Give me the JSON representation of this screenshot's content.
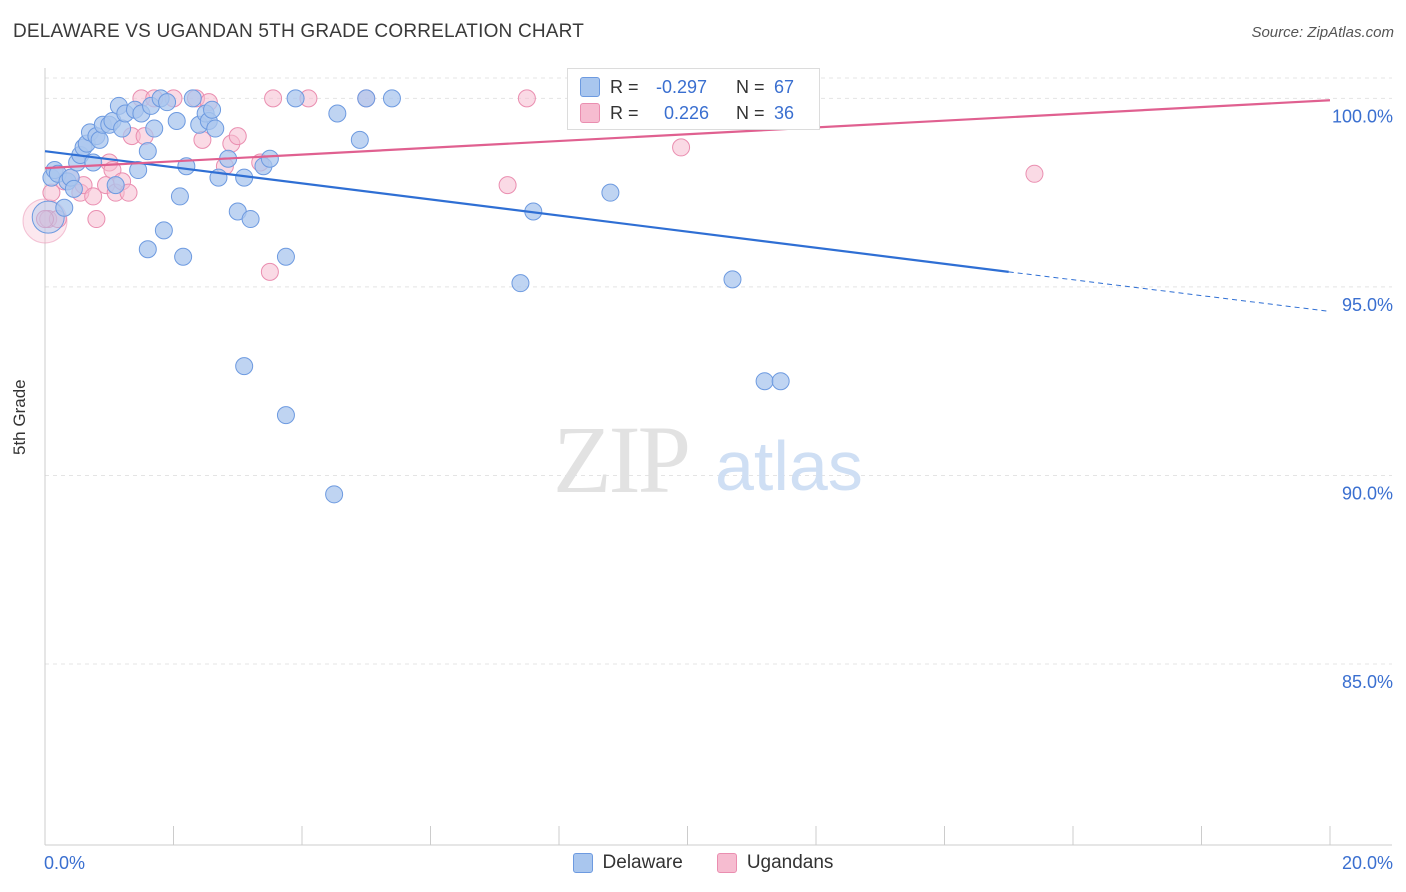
{
  "title": "DELAWARE VS UGANDAN 5TH GRADE CORRELATION CHART",
  "source": "Source: ZipAtlas.com",
  "watermark": {
    "zip": "ZIP",
    "atlas": "atlas"
  },
  "colors": {
    "delaware_fill": "#a9c6ee",
    "delaware_stroke": "#6d9ae0",
    "delaware_line": "#2f6fd4",
    "ugandans_fill": "#f6bcd0",
    "ugandans_stroke": "#ea8eb0",
    "ugandans_line": "#e06090",
    "axis_text": "#3a6fd0",
    "grid": "#e4e4e4"
  },
  "stats": {
    "delaware": {
      "r_label": "R =",
      "r": "-0.297",
      "n_label": "N =",
      "n": "67"
    },
    "ugandans": {
      "r_label": "R =",
      "r": "0.226",
      "n_label": "N =",
      "n": "36"
    }
  },
  "legend": [
    "Delaware",
    "Ugandans"
  ],
  "chart_data": {
    "type": "scatter",
    "title": "DELAWARE VS UGANDAN 5TH GRADE CORRELATION CHART",
    "xlabel": "",
    "ylabel": "5th Grade",
    "xlim": [
      0,
      20
    ],
    "ylim": [
      80.2,
      100.7
    ],
    "x_tick_labels": [
      "0.0%",
      "20.0%"
    ],
    "y_ticks": [
      100,
      95,
      90,
      85
    ],
    "y_tick_labels": [
      "100.0%",
      "95.0%",
      "90.0%",
      "85.0%"
    ],
    "grid": "horizontal dashed",
    "legend_position": "bottom-center",
    "series": [
      {
        "name": "Delaware",
        "trend": {
          "x0": 0,
          "y0": 98.6,
          "x1": 15.0,
          "y1": 95.4,
          "dashed_to_x": 20,
          "dashed_to_y": 94.35
        },
        "points": [
          [
            0.1,
            97.9
          ],
          [
            0.15,
            98.1
          ],
          [
            0.2,
            98.0
          ],
          [
            0.3,
            97.1
          ],
          [
            0.35,
            97.8
          ],
          [
            0.4,
            97.9
          ],
          [
            0.45,
            97.6
          ],
          [
            0.5,
            98.3
          ],
          [
            0.55,
            98.5
          ],
          [
            0.6,
            98.7
          ],
          [
            0.65,
            98.8
          ],
          [
            0.7,
            99.1
          ],
          [
            0.75,
            98.3
          ],
          [
            0.8,
            99.0
          ],
          [
            0.85,
            98.9
          ],
          [
            0.9,
            99.3
          ],
          [
            1.0,
            99.3
          ],
          [
            1.05,
            99.4
          ],
          [
            1.1,
            97.7
          ],
          [
            1.15,
            99.8
          ],
          [
            1.2,
            99.2
          ],
          [
            1.25,
            99.6
          ],
          [
            1.4,
            99.7
          ],
          [
            1.45,
            98.1
          ],
          [
            1.5,
            99.6
          ],
          [
            1.6,
            98.6
          ],
          [
            1.65,
            99.8
          ],
          [
            1.7,
            99.2
          ],
          [
            1.8,
            100.0
          ],
          [
            1.85,
            96.5
          ],
          [
            1.6,
            96.0
          ],
          [
            1.9,
            99.9
          ],
          [
            2.05,
            99.4
          ],
          [
            2.1,
            97.4
          ],
          [
            2.2,
            98.2
          ],
          [
            2.15,
            95.8
          ],
          [
            2.3,
            100.0
          ],
          [
            2.4,
            99.3
          ],
          [
            2.5,
            99.6
          ],
          [
            2.55,
            99.4
          ],
          [
            2.6,
            99.7
          ],
          [
            2.65,
            99.2
          ],
          [
            2.7,
            97.9
          ],
          [
            2.85,
            98.4
          ],
          [
            3.0,
            97.0
          ],
          [
            3.1,
            97.9
          ],
          [
            3.2,
            96.8
          ],
          [
            3.4,
            98.2
          ],
          [
            3.5,
            98.4
          ],
          [
            3.75,
            95.8
          ],
          [
            3.1,
            92.9
          ],
          [
            3.75,
            91.6
          ],
          [
            3.9,
            100.0
          ],
          [
            4.55,
            99.6
          ],
          [
            4.5,
            89.5
          ],
          [
            4.9,
            98.9
          ],
          [
            5.0,
            100.0
          ],
          [
            5.4,
            100.0
          ],
          [
            7.4,
            95.1
          ],
          [
            7.6,
            97.0
          ],
          [
            9.0,
            100.0
          ],
          [
            9.8,
            100.0
          ],
          [
            8.8,
            97.5
          ],
          [
            11.4,
            100.0
          ],
          [
            10.7,
            95.2
          ],
          [
            11.2,
            92.5
          ],
          [
            11.45,
            92.5
          ]
        ]
      },
      {
        "name": "Ugandans",
        "trend": {
          "x0": 0,
          "y0": 98.15,
          "x1": 20,
          "y1": 99.95
        },
        "points": [
          [
            0.05,
            96.8
          ],
          [
            0.1,
            97.5
          ],
          [
            0.2,
            96.8
          ],
          [
            0.3,
            97.8
          ],
          [
            0.4,
            97.9
          ],
          [
            0.55,
            97.5
          ],
          [
            0.6,
            97.7
          ],
          [
            0.75,
            97.4
          ],
          [
            0.8,
            96.8
          ],
          [
            0.95,
            97.7
          ],
          [
            1.0,
            98.3
          ],
          [
            1.05,
            98.1
          ],
          [
            1.1,
            97.5
          ],
          [
            1.2,
            97.8
          ],
          [
            1.3,
            97.5
          ],
          [
            1.35,
            99.0
          ],
          [
            1.5,
            100.0
          ],
          [
            1.7,
            100.0
          ],
          [
            1.55,
            99.0
          ],
          [
            2.0,
            100.0
          ],
          [
            2.35,
            100.0
          ],
          [
            2.45,
            98.9
          ],
          [
            2.55,
            99.9
          ],
          [
            2.8,
            98.2
          ],
          [
            2.9,
            98.8
          ],
          [
            3.0,
            99.0
          ],
          [
            3.35,
            98.3
          ],
          [
            3.5,
            95.4
          ],
          [
            3.55,
            100.0
          ],
          [
            4.1,
            100.0
          ],
          [
            5.0,
            100.0
          ],
          [
            7.2,
            97.7
          ],
          [
            7.5,
            100.0
          ],
          [
            9.9,
            98.7
          ],
          [
            15.4,
            98.0
          ],
          [
            0.0,
            96.8
          ]
        ]
      }
    ]
  }
}
